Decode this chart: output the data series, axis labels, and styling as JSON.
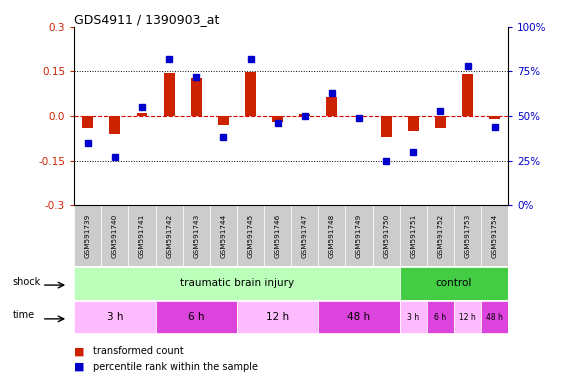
{
  "title": "GDS4911 / 1390903_at",
  "samples": [
    "GSM591739",
    "GSM591740",
    "GSM591741",
    "GSM591742",
    "GSM591743",
    "GSM591744",
    "GSM591745",
    "GSM591746",
    "GSM591747",
    "GSM591748",
    "GSM591749",
    "GSM591750",
    "GSM591751",
    "GSM591752",
    "GSM591753",
    "GSM591754"
  ],
  "red_values": [
    -0.04,
    -0.06,
    0.01,
    0.145,
    0.128,
    -0.03,
    0.148,
    -0.02,
    0.005,
    0.065,
    -0.005,
    -0.07,
    -0.05,
    -0.04,
    0.143,
    -0.01
  ],
  "blue_values": [
    35,
    27,
    55,
    82,
    72,
    38,
    82,
    46,
    50,
    63,
    49,
    25,
    30,
    53,
    78,
    44
  ],
  "red_color": "#cc2200",
  "blue_color": "#0000cc",
  "ylim_left": [
    -0.3,
    0.3
  ],
  "ylim_right": [
    0,
    100
  ],
  "yticks_left": [
    -0.3,
    -0.15,
    0.0,
    0.15,
    0.3
  ],
  "yticks_right": [
    0,
    25,
    50,
    75,
    100
  ],
  "ytick_labels_right": [
    "0%",
    "25%",
    "50%",
    "75%",
    "100%"
  ],
  "bar_width": 0.4,
  "marker_size": 5,
  "shock_groups": [
    {
      "label": "traumatic brain injury",
      "start": 0,
      "end": 12,
      "color": "#bbffbb"
    },
    {
      "label": "control",
      "start": 12,
      "end": 16,
      "color": "#44cc44"
    }
  ],
  "time_groups": [
    {
      "label": "3 h",
      "start": 0,
      "end": 3,
      "color": "#ffbbff"
    },
    {
      "label": "6 h",
      "start": 3,
      "end": 6,
      "color": "#dd44dd"
    },
    {
      "label": "12 h",
      "start": 6,
      "end": 9,
      "color": "#ffbbff"
    },
    {
      "label": "48 h",
      "start": 9,
      "end": 12,
      "color": "#dd44dd"
    },
    {
      "label": "3 h",
      "start": 12,
      "end": 13,
      "color": "#ffbbff"
    },
    {
      "label": "6 h",
      "start": 13,
      "end": 14,
      "color": "#dd44dd"
    },
    {
      "label": "12 h",
      "start": 14,
      "end": 15,
      "color": "#ffbbff"
    },
    {
      "label": "48 h",
      "start": 15,
      "end": 16,
      "color": "#dd44dd"
    }
  ],
  "label_bg": "#cccccc",
  "shock_label": "shock",
  "time_label": "time",
  "legend_red": "transformed count",
  "legend_blue": "percentile rank within the sample"
}
